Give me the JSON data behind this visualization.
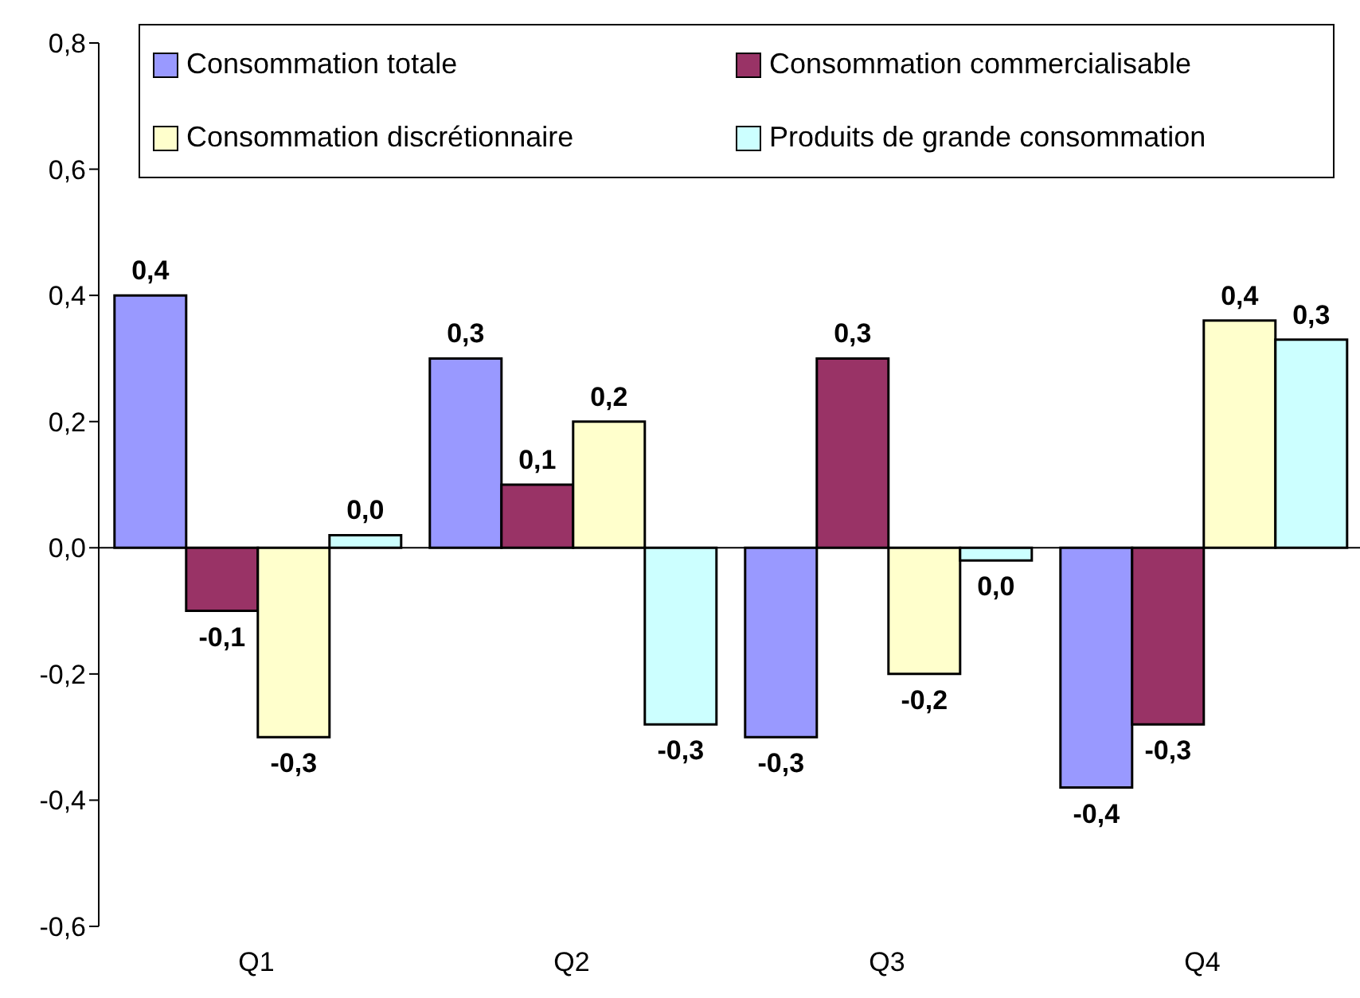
{
  "chart_data": {
    "type": "bar",
    "categories": [
      "Q1",
      "Q2",
      "Q3",
      "Q4"
    ],
    "series": [
      {
        "name": "Consommation totale",
        "color": "#9999ff",
        "values": [
          0.4,
          0.3,
          -0.3,
          -0.38
        ],
        "value_labels": [
          "0,4",
          "0,3",
          "-0,3",
          "-0,4"
        ]
      },
      {
        "name": "Consommation commercialisable",
        "color": "#993366",
        "values": [
          -0.1,
          0.1,
          0.3,
          -0.28
        ],
        "value_labels": [
          "-0,1",
          "0,1",
          "0,3",
          "-0,3"
        ]
      },
      {
        "name": "Consommation discrétionnaire",
        "color": "#ffffcc",
        "values": [
          -0.3,
          0.2,
          -0.2,
          0.36
        ],
        "value_labels": [
          "-0,3",
          "0,2",
          "-0,2",
          "0,4"
        ]
      },
      {
        "name": "Produits de grande consommation",
        "color": "#ccffff",
        "values": [
          0.02,
          -0.28,
          -0.02,
          0.33
        ],
        "value_labels": [
          "0,0",
          "-0,3",
          "0,0",
          "0,3"
        ]
      }
    ],
    "ylim": [
      -0.6,
      0.8
    ],
    "yticks": [
      {
        "value": -0.6,
        "label": "-0,6"
      },
      {
        "value": -0.4,
        "label": "-0,4"
      },
      {
        "value": -0.2,
        "label": "-0,2"
      },
      {
        "value": 0,
        "label": "0,0"
      },
      {
        "value": 0.2,
        "label": "0,2"
      },
      {
        "value": 0.4,
        "label": "0,4"
      },
      {
        "value": 0.6,
        "label": "0,6"
      },
      {
        "value": 0.8,
        "label": "0,8"
      }
    ],
    "legend": "top"
  }
}
